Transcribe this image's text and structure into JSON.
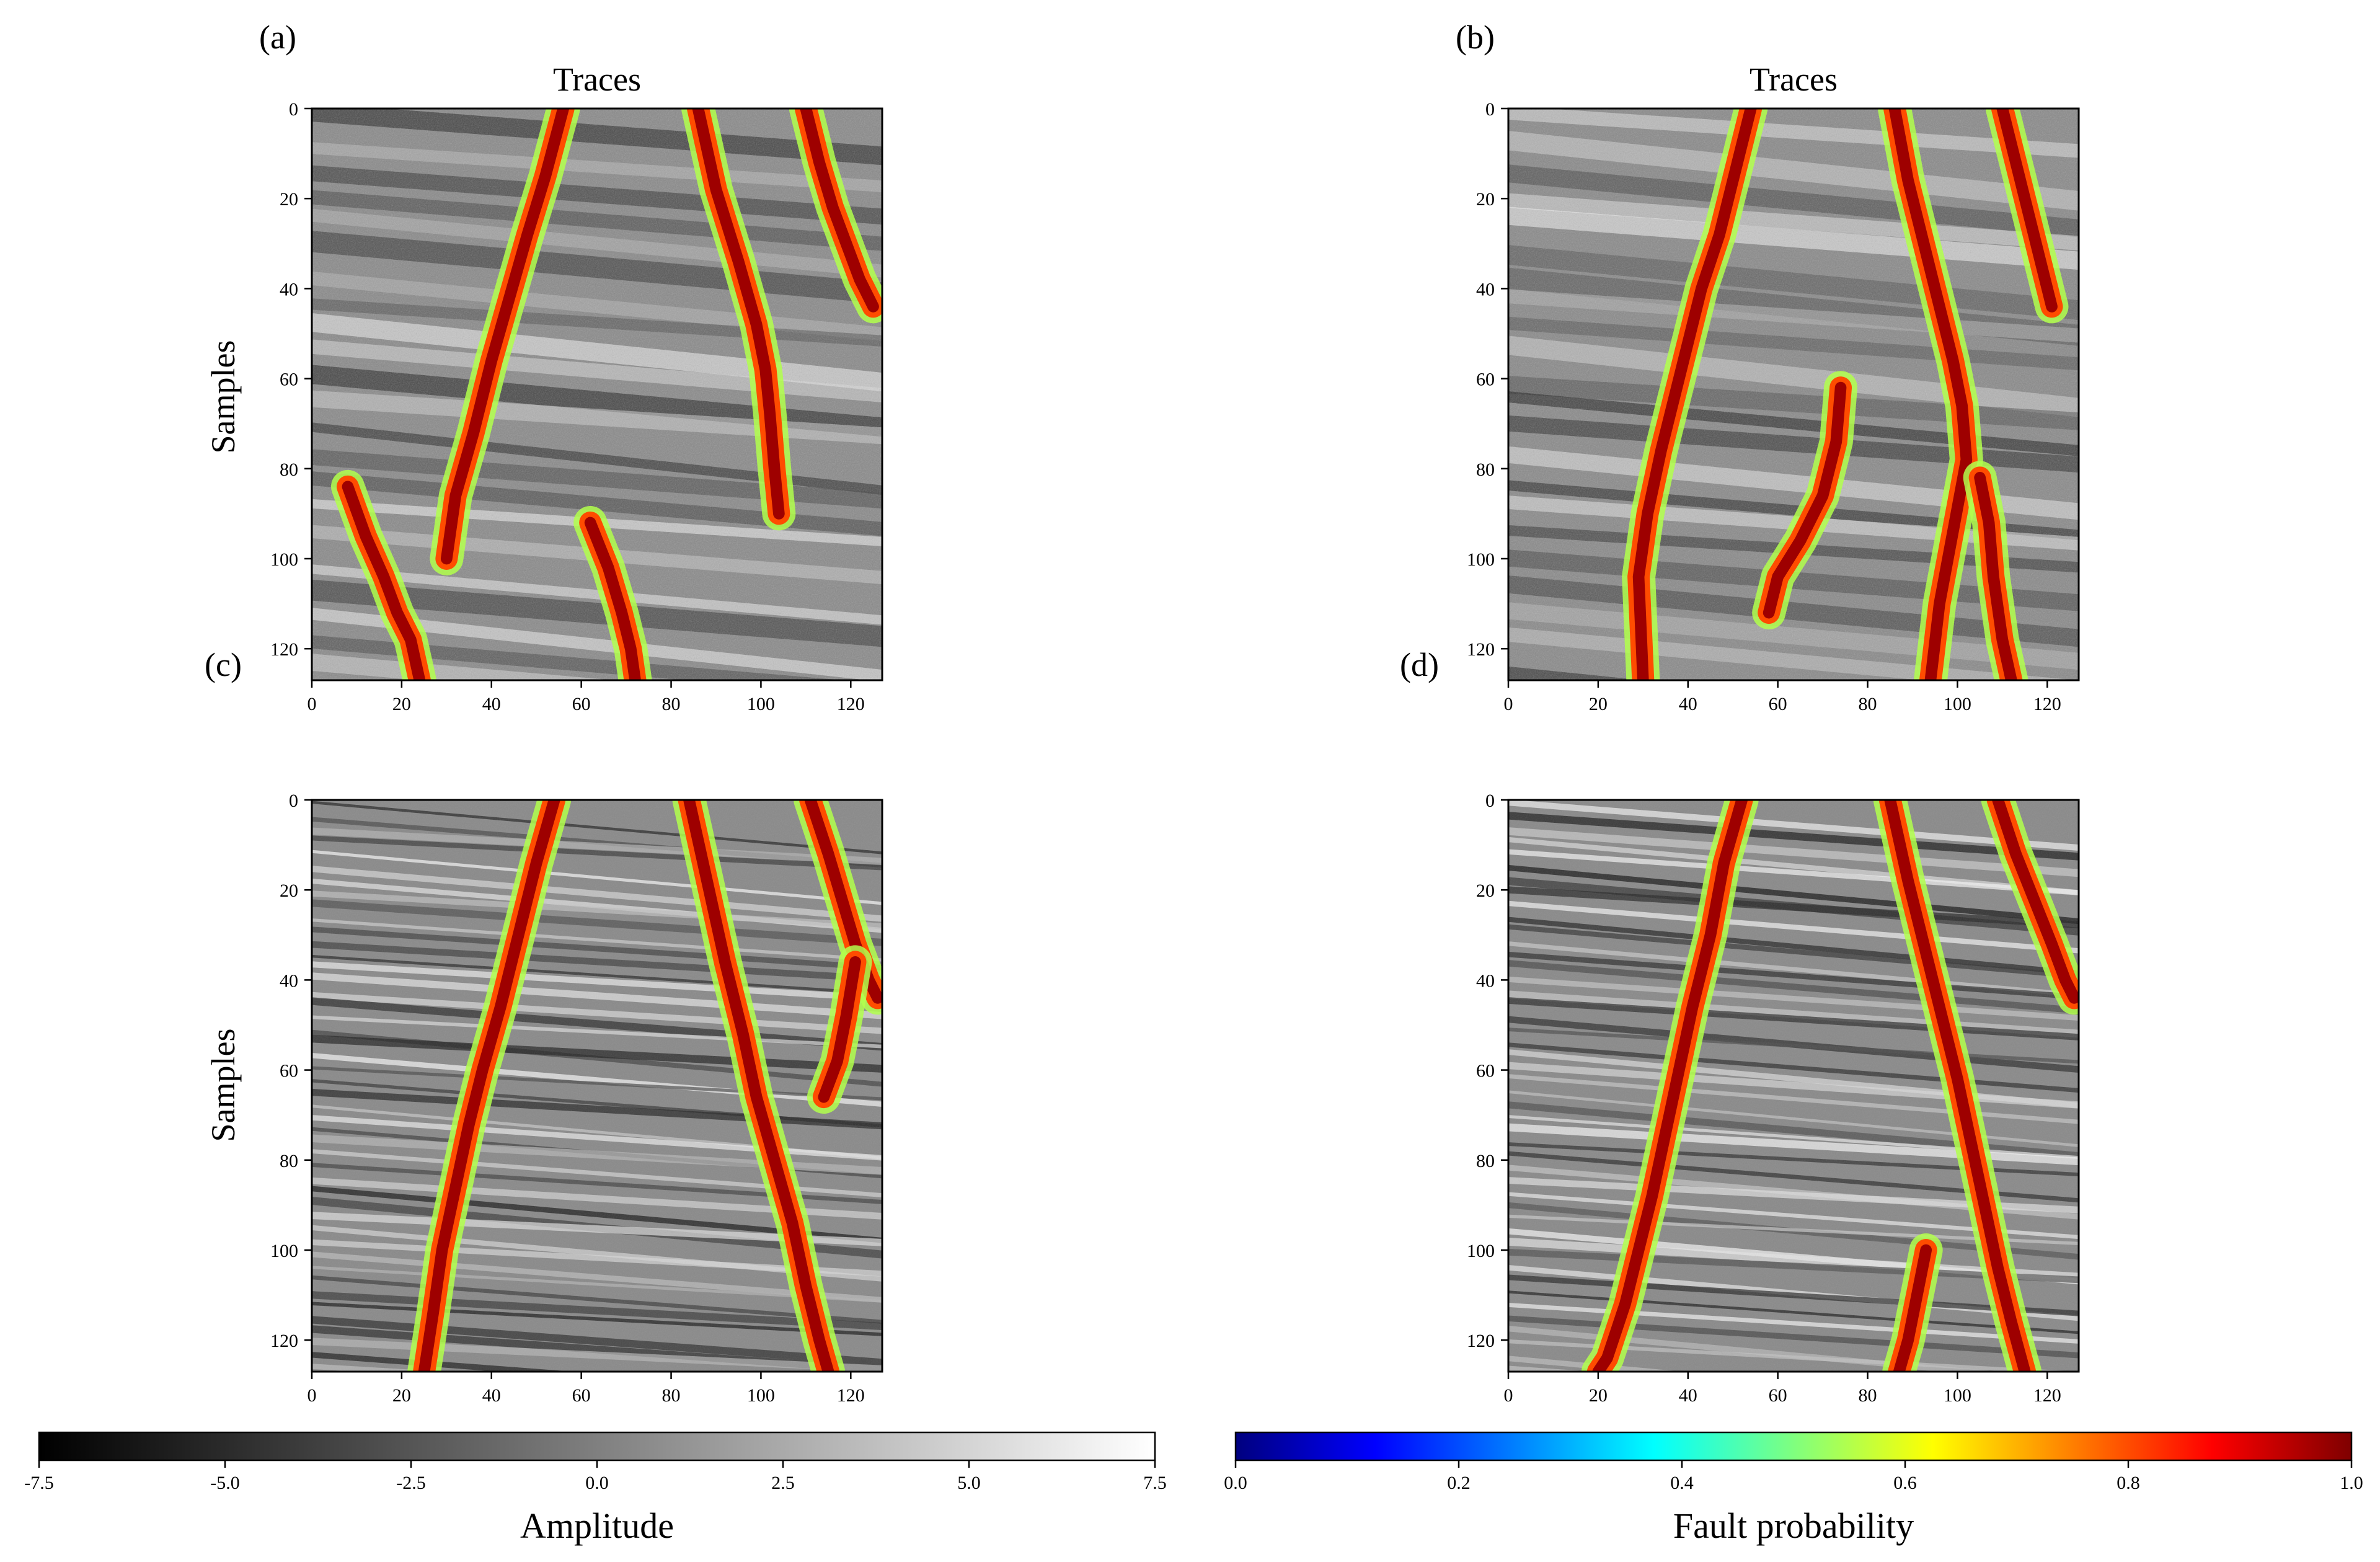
{
  "chart_data": [
    {
      "type": "heatmap",
      "panel_label": "(a)",
      "title": "Traces",
      "xlabel": "",
      "ylabel": "Samples",
      "xlim": [
        0,
        127
      ],
      "ylim": [
        127,
        0
      ],
      "xticks": [
        "0",
        "20",
        "40",
        "60",
        "80",
        "100",
        "120"
      ],
      "yticks": [
        "0",
        "20",
        "40",
        "60",
        "80",
        "100",
        "120"
      ],
      "fault_traces": [
        [
          [
            56,
            0
          ],
          [
            52,
            15
          ],
          [
            48,
            28
          ],
          [
            44,
            42
          ],
          [
            40,
            56
          ],
          [
            36,
            72
          ],
          [
            32,
            86
          ],
          [
            30,
            100
          ]
        ],
        [
          [
            86,
            0
          ],
          [
            90,
            18
          ],
          [
            95,
            34
          ],
          [
            99,
            48
          ],
          [
            101,
            58
          ],
          [
            102,
            68
          ],
          [
            103,
            80
          ],
          [
            104,
            90
          ]
        ],
        [
          [
            110,
            0
          ],
          [
            113,
            12
          ],
          [
            116,
            22
          ],
          [
            119,
            30
          ],
          [
            122,
            38
          ],
          [
            125,
            44
          ]
        ],
        [
          [
            8,
            84
          ],
          [
            12,
            95
          ],
          [
            16,
            104
          ],
          [
            19,
            112
          ],
          [
            22,
            118
          ],
          [
            24,
            127
          ]
        ],
        [
          [
            62,
            92
          ],
          [
            66,
            102
          ],
          [
            69,
            112
          ],
          [
            71,
            120
          ],
          [
            72,
            127
          ]
        ]
      ]
    },
    {
      "type": "heatmap",
      "panel_label": "(b)",
      "title": "Traces",
      "xlabel": "",
      "ylabel": "",
      "xlim": [
        0,
        127
      ],
      "ylim": [
        127,
        0
      ],
      "xticks": [
        "0",
        "20",
        "40",
        "60",
        "80",
        "100",
        "120"
      ],
      "yticks": [
        "0",
        "20",
        "40",
        "60",
        "80",
        "100",
        "120"
      ],
      "fault_traces": [
        [
          [
            54,
            0
          ],
          [
            51,
            12
          ],
          [
            47,
            28
          ],
          [
            43,
            40
          ],
          [
            40,
            52
          ],
          [
            37,
            64
          ],
          [
            34,
            76
          ],
          [
            31,
            90
          ],
          [
            29,
            104
          ],
          [
            30,
            127
          ]
        ],
        [
          [
            86,
            0
          ],
          [
            89,
            16
          ],
          [
            93,
            32
          ],
          [
            96,
            44
          ],
          [
            99,
            56
          ],
          [
            101,
            66
          ],
          [
            102,
            78
          ],
          [
            99,
            94
          ],
          [
            96,
            110
          ],
          [
            94,
            127
          ]
        ],
        [
          [
            110,
            0
          ],
          [
            113,
            12
          ],
          [
            116,
            24
          ],
          [
            119,
            36
          ],
          [
            121,
            44
          ]
        ],
        [
          [
            74,
            62
          ],
          [
            73,
            74
          ],
          [
            70,
            86
          ],
          [
            65,
            96
          ],
          [
            60,
            104
          ],
          [
            58,
            112
          ]
        ],
        [
          [
            105,
            82
          ],
          [
            107,
            92
          ],
          [
            108,
            104
          ],
          [
            110,
            118
          ],
          [
            112,
            127
          ]
        ]
      ]
    },
    {
      "type": "heatmap",
      "panel_label": "(c)",
      "title": "",
      "xlabel": "",
      "ylabel": "Samples",
      "xlim": [
        0,
        127
      ],
      "ylim": [
        127,
        0
      ],
      "xticks": [
        "0",
        "20",
        "40",
        "60",
        "80",
        "100",
        "120"
      ],
      "yticks": [
        "0",
        "20",
        "40",
        "60",
        "80",
        "100",
        "120"
      ],
      "fault_traces": [
        [
          [
            54,
            0
          ],
          [
            50,
            14
          ],
          [
            46,
            30
          ],
          [
            42,
            46
          ],
          [
            38,
            60
          ],
          [
            35,
            72
          ],
          [
            32,
            86
          ],
          [
            29,
            100
          ],
          [
            27,
            114
          ],
          [
            25,
            127
          ]
        ],
        [
          [
            84,
            0
          ],
          [
            88,
            18
          ],
          [
            92,
            36
          ],
          [
            96,
            52
          ],
          [
            99,
            66
          ],
          [
            103,
            80
          ],
          [
            107,
            94
          ],
          [
            110,
            108
          ],
          [
            113,
            120
          ],
          [
            115,
            127
          ]
        ],
        [
          [
            111,
            0
          ],
          [
            115,
            12
          ],
          [
            118,
            22
          ],
          [
            121,
            32
          ],
          [
            124,
            40
          ],
          [
            126,
            44
          ]
        ],
        [
          [
            121,
            36
          ],
          [
            119,
            48
          ],
          [
            117,
            58
          ],
          [
            114,
            66
          ]
        ]
      ]
    },
    {
      "type": "heatmap",
      "panel_label": "(d)",
      "title": "",
      "xlabel": "",
      "ylabel": "",
      "xlim": [
        0,
        127
      ],
      "ylim": [
        127,
        0
      ],
      "xticks": [
        "0",
        "20",
        "40",
        "60",
        "80",
        "100",
        "120"
      ],
      "yticks": [
        "0",
        "20",
        "40",
        "60",
        "80",
        "100",
        "120"
      ],
      "fault_traces": [
        [
          [
            52,
            0
          ],
          [
            48,
            14
          ],
          [
            45,
            30
          ],
          [
            41,
            46
          ],
          [
            38,
            60
          ],
          [
            35,
            74
          ],
          [
            32,
            88
          ],
          [
            29,
            100
          ],
          [
            26,
            112
          ],
          [
            22,
            124
          ],
          [
            20,
            127
          ]
        ],
        [
          [
            85,
            0
          ],
          [
            89,
            18
          ],
          [
            93,
            34
          ],
          [
            97,
            50
          ],
          [
            100,
            62
          ],
          [
            103,
            76
          ],
          [
            106,
            90
          ],
          [
            109,
            104
          ],
          [
            112,
            116
          ],
          [
            115,
            127
          ]
        ],
        [
          [
            109,
            0
          ],
          [
            113,
            12
          ],
          [
            117,
            22
          ],
          [
            121,
            32
          ],
          [
            124,
            40
          ],
          [
            126,
            44
          ]
        ],
        [
          [
            93,
            100
          ],
          [
            91,
            110
          ],
          [
            89,
            120
          ],
          [
            87,
            127
          ]
        ]
      ]
    },
    {
      "type": "colorbar",
      "label": "Amplitude",
      "range": [
        -7.5,
        7.5
      ],
      "ticks": [
        "-7.5",
        "-5.0",
        "-2.5",
        "0.0",
        "2.5",
        "5.0",
        "7.5"
      ],
      "colormap": "gray",
      "colors": [
        "#000000",
        "#ffffff"
      ]
    },
    {
      "type": "colorbar",
      "label": "Fault probability",
      "range": [
        0.0,
        1.0
      ],
      "ticks": [
        "0.0",
        "0.2",
        "0.4",
        "0.6",
        "0.8",
        "1.0"
      ],
      "colormap": "jet",
      "colors": [
        "#00007f",
        "#0000ff",
        "#007fff",
        "#00ffff",
        "#7fff7f",
        "#ffff00",
        "#ff7f00",
        "#ff0000",
        "#7f0000"
      ]
    }
  ]
}
